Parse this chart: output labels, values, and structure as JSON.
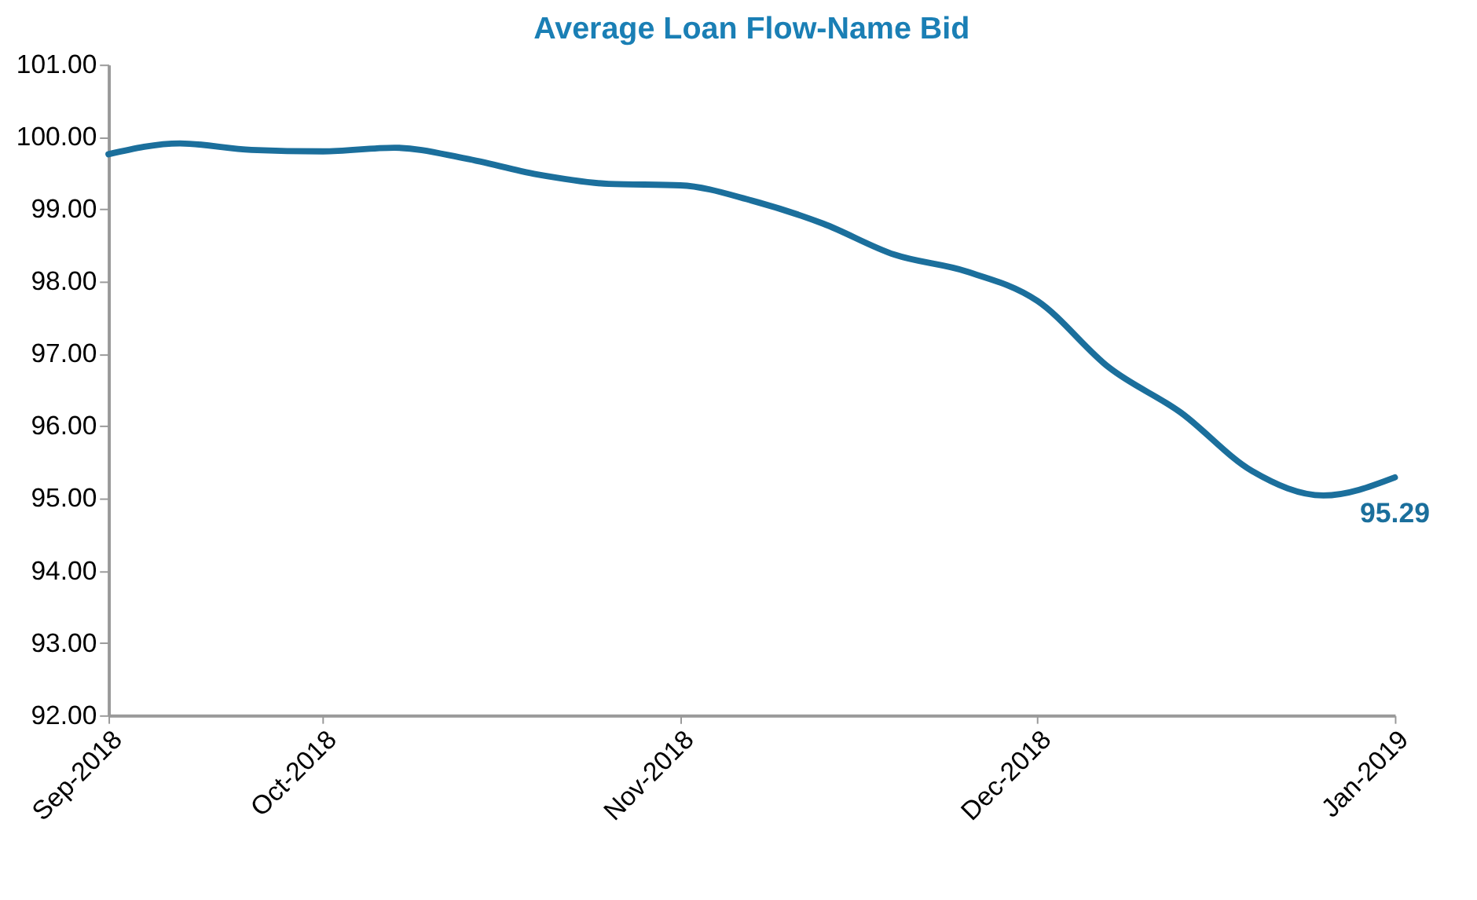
{
  "chart_data": {
    "type": "line",
    "title": "Average Loan Flow-Name Bid",
    "categories": [
      "Sep-2018",
      null,
      null,
      "Oct-2018",
      null,
      null,
      null,
      null,
      "Nov-2018",
      null,
      null,
      null,
      null,
      "Dec-2018",
      null,
      null,
      null,
      null,
      "Jan-2019"
    ],
    "series": [
      {
        "color": "#1b6f9c",
        "values": [
          99.76,
          99.91,
          99.82,
          99.8,
          99.85,
          99.7,
          99.48,
          99.35,
          99.33,
          99.12,
          98.8,
          98.37,
          98.14,
          97.73,
          96.81,
          96.19,
          95.38,
          95.04,
          95.29
        ],
        "value_labels": [
          null,
          null,
          null,
          null,
          null,
          null,
          null,
          null,
          null,
          null,
          null,
          null,
          null,
          null,
          null,
          null,
          null,
          null,
          "95.29"
        ]
      }
    ],
    "ylim": [
      92,
      101
    ],
    "yticks": [
      {
        "value": 92,
        "label": "92.00"
      },
      {
        "value": 93,
        "label": "93.00"
      },
      {
        "value": 94,
        "label": "94.00"
      },
      {
        "value": 95,
        "label": "95.00"
      },
      {
        "value": 96,
        "label": "96.00"
      },
      {
        "value": 97,
        "label": "97.00"
      },
      {
        "value": 98,
        "label": "98.00"
      },
      {
        "value": 99,
        "label": "99.00"
      },
      {
        "value": 100,
        "label": "100.00"
      },
      {
        "value": 101,
        "label": "101.00"
      }
    ],
    "grid": false,
    "marker": "none",
    "line_style": "solid"
  }
}
